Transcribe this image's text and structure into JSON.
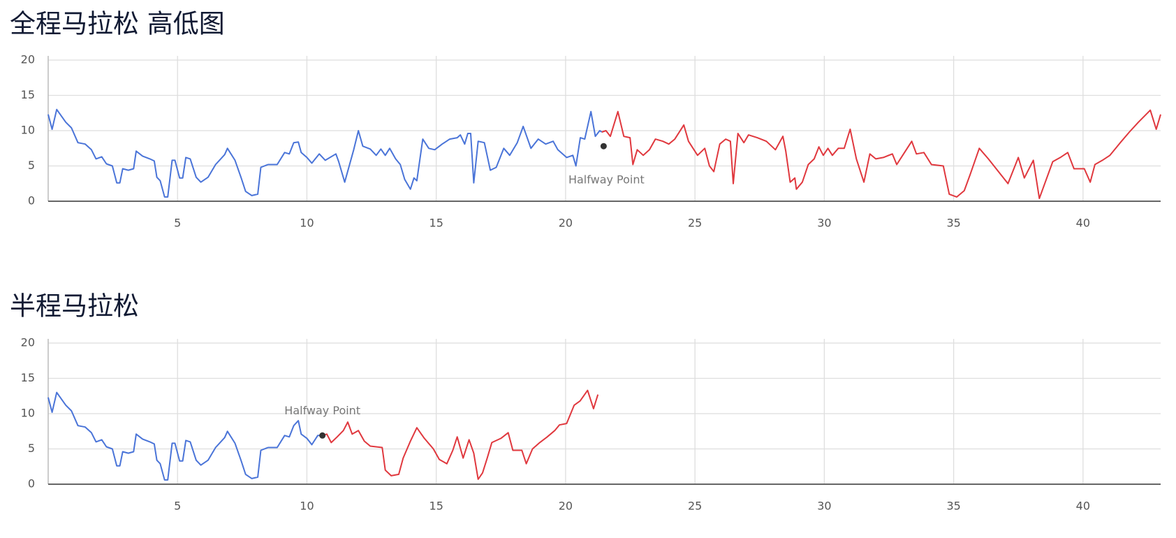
{
  "chart_data": [
    {
      "type": "line",
      "title": "全程马拉松 高低图",
      "xlim": [
        0,
        43
      ],
      "xticks": [
        5,
        10,
        15,
        20,
        25,
        30,
        35,
        40
      ],
      "ylim": [
        0,
        20
      ],
      "yticks": [
        0,
        5,
        10,
        15,
        20
      ],
      "grid": true,
      "annotation": {
        "text": "Halfway Point",
        "x": 21.47,
        "y": 7.8
      },
      "series": [
        {
          "color": "#4a74d8",
          "x": [
            0,
            0.15,
            0.33,
            0.68,
            0.9,
            1.15,
            1.43,
            1.67,
            1.85,
            2.07,
            2.25,
            2.48,
            2.65,
            2.77,
            2.88,
            3.1,
            3.3,
            3.4,
            3.65,
            3.93,
            4.1,
            4.2,
            4.33,
            4.5,
            4.62,
            4.79,
            4.9,
            5.08,
            5.2,
            5.32,
            5.49,
            5.72,
            5.9,
            6.18,
            6.47,
            6.82,
            6.93,
            7.22,
            7.46,
            7.63,
            7.87,
            8.1,
            8.22,
            8.5,
            8.85,
            9.14,
            9.32,
            9.49,
            9.67,
            9.78,
            10.0,
            10.19,
            10.48,
            10.71,
            11.12,
            11.23,
            11.46,
            11.81,
            11.99,
            12.16,
            12.45,
            12.68,
            12.86,
            13.03,
            13.2,
            13.43,
            13.61,
            13.78,
            14.0,
            14.14,
            14.25,
            14.48,
            14.71,
            14.94,
            15.23,
            15.52,
            15.81,
            15.93,
            16.1,
            16.22,
            16.33,
            16.45,
            16.62,
            16.86,
            17.09,
            17.32,
            17.61,
            17.84,
            18.13,
            18.36,
            18.66,
            18.94,
            19.23,
            19.52,
            19.7,
            20.04,
            20.28,
            20.4,
            20.57,
            20.74,
            20.98,
            21.15,
            21.32,
            21.4
          ],
          "values": [
            12.3,
            10.2,
            13,
            11.2,
            10.4,
            8.3,
            8.1,
            7.3,
            6.0,
            6.3,
            5.3,
            5.0,
            2.6,
            2.6,
            4.6,
            4.4,
            4.6,
            7.1,
            6.4,
            6.0,
            5.7,
            3.4,
            2.9,
            0.6,
            0.6,
            5.8,
            5.8,
            3.3,
            3.3,
            6.2,
            6.0,
            3.4,
            2.7,
            3.4,
            5.2,
            6.6,
            7.5,
            5.8,
            3.3,
            1.4,
            0.8,
            1.0,
            4.8,
            5.2,
            5.2,
            6.9,
            6.7,
            8.3,
            8.4,
            6.9,
            6.2,
            5.4,
            6.7,
            5.8,
            6.7,
            5.6,
            2.7,
            7.3,
            10.0,
            7.8,
            7.4,
            6.5,
            7.4,
            6.5,
            7.5,
            6.0,
            5.2,
            3.1,
            1.7,
            3.3,
            2.9,
            8.8,
            7.5,
            7.3,
            8.1,
            8.8,
            9.0,
            9.4,
            8.1,
            9.6,
            9.6,
            2.6,
            8.5,
            8.3,
            4.4,
            4.8,
            7.5,
            6.5,
            8.3,
            10.6,
            7.5,
            8.8,
            8.1,
            8.5,
            7.3,
            6.2,
            6.5,
            5.0,
            9.0,
            8.8,
            12.7,
            9.2,
            10.0,
            9.8
          ]
        },
        {
          "color": "#e0383e",
          "x": [
            21.4,
            21.56,
            21.73,
            22.02,
            22.25,
            22.49,
            22.6,
            22.77,
            23.0,
            23.24,
            23.47,
            23.76,
            23.99,
            24.22,
            24.57,
            24.75,
            25.1,
            25.38,
            25.56,
            25.73,
            25.96,
            26.19,
            26.37,
            26.48,
            26.66,
            26.89,
            27.07,
            27.41,
            27.76,
            28.11,
            28.4,
            28.51,
            28.68,
            28.86,
            28.92,
            29.15,
            29.38,
            29.61,
            29.79,
            29.96,
            30.14,
            30.31,
            30.54,
            30.77,
            31.0,
            31.24,
            31.53,
            31.76,
            31.99,
            32.28,
            32.63,
            32.8,
            33.03,
            33.38,
            33.56,
            33.85,
            34.14,
            34.6,
            34.83,
            35.12,
            35.41,
            35.64,
            35.99,
            36.34,
            36.69,
            37.1,
            37.5,
            37.73,
            38.08,
            38.31,
            38.54,
            38.83,
            39.12,
            39.41,
            39.65,
            40.05,
            40.28,
            40.46,
            40.75,
            41.04,
            41.44,
            41.79,
            42.14,
            42.6,
            42.83,
            43.0
          ],
          "values": [
            9.8,
            10.0,
            9.2,
            12.7,
            9.2,
            9.0,
            5.2,
            7.3,
            6.5,
            7.3,
            8.8,
            8.5,
            8.1,
            8.8,
            10.8,
            8.5,
            6.5,
            7.5,
            5.0,
            4.2,
            8.1,
            8.8,
            8.5,
            2.5,
            9.6,
            8.3,
            9.4,
            9.0,
            8.5,
            7.3,
            9.2,
            7.1,
            2.7,
            3.3,
            1.7,
            2.7,
            5.2,
            6.0,
            7.7,
            6.5,
            7.5,
            6.5,
            7.5,
            7.5,
            10.2,
            6.0,
            2.7,
            6.7,
            6.0,
            6.2,
            6.7,
            5.2,
            6.5,
            8.5,
            6.7,
            6.9,
            5.2,
            5.0,
            1.0,
            0.6,
            1.5,
            3.8,
            7.5,
            6.0,
            4.4,
            2.5,
            6.2,
            3.3,
            5.8,
            0.4,
            2.7,
            5.6,
            6.2,
            6.9,
            4.6,
            4.6,
            2.7,
            5.2,
            5.8,
            6.5,
            8.3,
            9.8,
            11.2,
            12.9,
            10.2,
            12.3
          ]
        }
      ]
    },
    {
      "type": "line",
      "title": "半程马拉松",
      "xlim": [
        0,
        43
      ],
      "xticks": [
        5,
        10,
        15,
        20,
        25,
        30,
        35,
        40
      ],
      "ylim": [
        0,
        20
      ],
      "yticks": [
        0,
        5,
        10,
        15,
        20
      ],
      "grid": true,
      "annotation": {
        "text": "Halfway Point",
        "x": 10.6,
        "y": 6.9
      },
      "series": [
        {
          "color": "#4a74d8",
          "x": [
            0,
            0.15,
            0.33,
            0.68,
            0.9,
            1.15,
            1.43,
            1.67,
            1.85,
            2.07,
            2.25,
            2.48,
            2.65,
            2.77,
            2.88,
            3.1,
            3.3,
            3.4,
            3.65,
            3.93,
            4.1,
            4.2,
            4.33,
            4.5,
            4.62,
            4.79,
            4.9,
            5.08,
            5.2,
            5.32,
            5.49,
            5.72,
            5.9,
            6.18,
            6.47,
            6.82,
            6.93,
            7.22,
            7.46,
            7.63,
            7.87,
            8.1,
            8.22,
            8.5,
            8.85,
            9.14,
            9.32,
            9.49,
            9.67,
            9.78,
            10.0,
            10.19,
            10.42,
            10.6
          ],
          "values": [
            12.3,
            10.2,
            13,
            11.2,
            10.4,
            8.3,
            8.1,
            7.3,
            6.0,
            6.3,
            5.3,
            5.0,
            2.6,
            2.6,
            4.6,
            4.4,
            4.6,
            7.1,
            6.4,
            6.0,
            5.7,
            3.4,
            2.9,
            0.6,
            0.6,
            5.8,
            5.8,
            3.3,
            3.3,
            6.2,
            6.0,
            3.4,
            2.7,
            3.4,
            5.2,
            6.6,
            7.5,
            5.8,
            3.3,
            1.4,
            0.8,
            1.0,
            4.8,
            5.2,
            5.2,
            6.9,
            6.7,
            8.3,
            9.0,
            7.1,
            6.5,
            5.6,
            6.9,
            6.9
          ]
        },
        {
          "color": "#e0383e",
          "x": [
            10.6,
            10.77,
            10.94,
            11.17,
            11.41,
            11.58,
            11.75,
            11.99,
            12.22,
            12.45,
            12.91,
            13.03,
            13.26,
            13.55,
            13.72,
            14.0,
            14.25,
            14.54,
            14.89,
            15.12,
            15.41,
            15.64,
            15.81,
            16.04,
            16.27,
            16.45,
            16.62,
            16.79,
            16.97,
            17.15,
            17.5,
            17.78,
            17.96,
            18.31,
            18.48,
            18.72,
            19.0,
            19.29,
            19.58,
            19.76,
            20.04,
            20.33,
            20.56,
            20.85,
            21.08,
            21.25
          ],
          "values": [
            6.9,
            7.1,
            5.9,
            6.7,
            7.6,
            8.8,
            7.1,
            7.6,
            6.1,
            5.4,
            5.2,
            2.0,
            1.2,
            1.4,
            3.7,
            6.1,
            8.0,
            6.5,
            5.0,
            3.5,
            2.9,
            4.8,
            6.7,
            3.7,
            6.3,
            4.4,
            0.7,
            1.6,
            3.7,
            5.9,
            6.5,
            7.3,
            4.8,
            4.8,
            2.9,
            5.0,
            5.9,
            6.7,
            7.6,
            8.4,
            8.6,
            11.2,
            11.8,
            13.3,
            10.7,
            12.7
          ]
        }
      ]
    }
  ]
}
